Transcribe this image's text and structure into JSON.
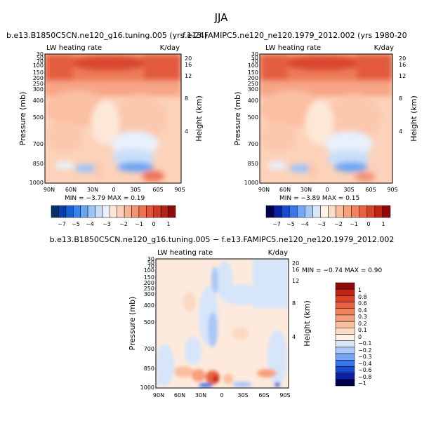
{
  "figure": {
    "title": "JJA"
  },
  "colors": {
    "cb1": [
      "#08306b",
      "#0a3ea8",
      "#1561d6",
      "#3b83ec",
      "#6aa5f2",
      "#9cc3f6",
      "#c9def9",
      "#e8f0fb",
      "#fde8d8",
      "#fbd0b6",
      "#f8b396",
      "#f39375",
      "#ec7455",
      "#e15638",
      "#cf3a25",
      "#b32214",
      "#8c0c0a"
    ],
    "cb2": [
      "#00004c",
      "#0c1fa0",
      "#1a4ad0",
      "#3b75ea",
      "#75a5f3",
      "#a9c8f7",
      "#d7e6fa",
      "#fff2e6",
      "#fddcc4",
      "#fbbe9c",
      "#f7a07c",
      "#f2825e",
      "#e86343",
      "#d94429",
      "#bf2414",
      "#8e0909"
    ]
  },
  "chart_data": [
    {
      "type": "heatmap",
      "panel": "top-left",
      "subtitle": "b.e13.B1850C5CN.ne120_g16.tuning.005 (yrs 1-24)",
      "left_label": "LW heating rate",
      "right_label": "K/day",
      "xlabel": "",
      "ylabel": "Pressure (mb)",
      "y2label": "Height (km)",
      "xticks": [
        "90N",
        "60N",
        "30N",
        "0",
        "30S",
        "60S",
        "90S"
      ],
      "yticks": [
        "30",
        "50",
        "70",
        "100",
        "150",
        "200",
        "250",
        "300",
        "400",
        "500",
        "700",
        "850",
        "1000"
      ],
      "y2ticks": [
        "20",
        "16",
        "12",
        "8",
        "4"
      ],
      "min_max": "MIN =   −3.79   MAX =   0.19",
      "colorbar_labels": [
        "−7",
        "−5",
        "−4",
        "−3",
        "−2",
        "−1",
        "0",
        "1"
      ],
      "colorbar_ticks": [
        -7,
        -6,
        -5,
        -4,
        -3,
        -2.5,
        -2,
        -1.5,
        -1,
        -0.5,
        0,
        0.5,
        1
      ]
    },
    {
      "type": "heatmap",
      "panel": "top-right",
      "subtitle": "f.e13.FAMIPC5.ne120_ne120.1979_2012.002 (yrs 1980-20",
      "left_label": "LW heating rate",
      "right_label": "K/day",
      "xlabel": "",
      "ylabel": "Pressure (mb)",
      "y2label": "Height (km)",
      "xticks": [
        "90N",
        "60N",
        "30N",
        "0",
        "30S",
        "60S",
        "90S"
      ],
      "yticks": [
        "30",
        "50",
        "70",
        "100",
        "150",
        "200",
        "250",
        "300",
        "400",
        "500",
        "700",
        "850",
        "1000"
      ],
      "y2ticks": [
        "20",
        "16",
        "12",
        "8",
        "4"
      ],
      "min_max": "MIN =   −3.89   MAX =   0.15",
      "colorbar_labels": [
        "−7",
        "−5",
        "−4",
        "−3",
        "−2",
        "−1",
        "0",
        "1"
      ]
    },
    {
      "type": "heatmap",
      "panel": "bottom",
      "subtitle": "b.e13.B1850C5CN.ne120_g16.tuning.005  −  f.e13.FAMIPC5.ne120_ne120.1979_2012.002",
      "left_label": "LW heating rate",
      "right_label": "K/day",
      "xlabel": "",
      "ylabel": "Pressure (mb)",
      "y2label": "Height (km)",
      "xticks": [
        "90N",
        "60N",
        "30N",
        "0",
        "30S",
        "60S",
        "90S"
      ],
      "yticks": [
        "30",
        "50",
        "70",
        "100",
        "150",
        "200",
        "250",
        "300",
        "400",
        "500",
        "700",
        "850",
        "1000"
      ],
      "y2ticks": [
        "20",
        "16",
        "12",
        "8",
        "4"
      ],
      "min_max": "MIN =   −0.74   MAX =   0.90",
      "colorbar_labels": [
        "1",
        "0.8",
        "0.6",
        "0.4",
        "0.3",
        "0.2",
        "0.1",
        "0",
        "−0.1",
        "−0.2",
        "−0.3",
        "−0.4",
        "−0.6",
        "−0.8",
        "−1"
      ]
    }
  ]
}
